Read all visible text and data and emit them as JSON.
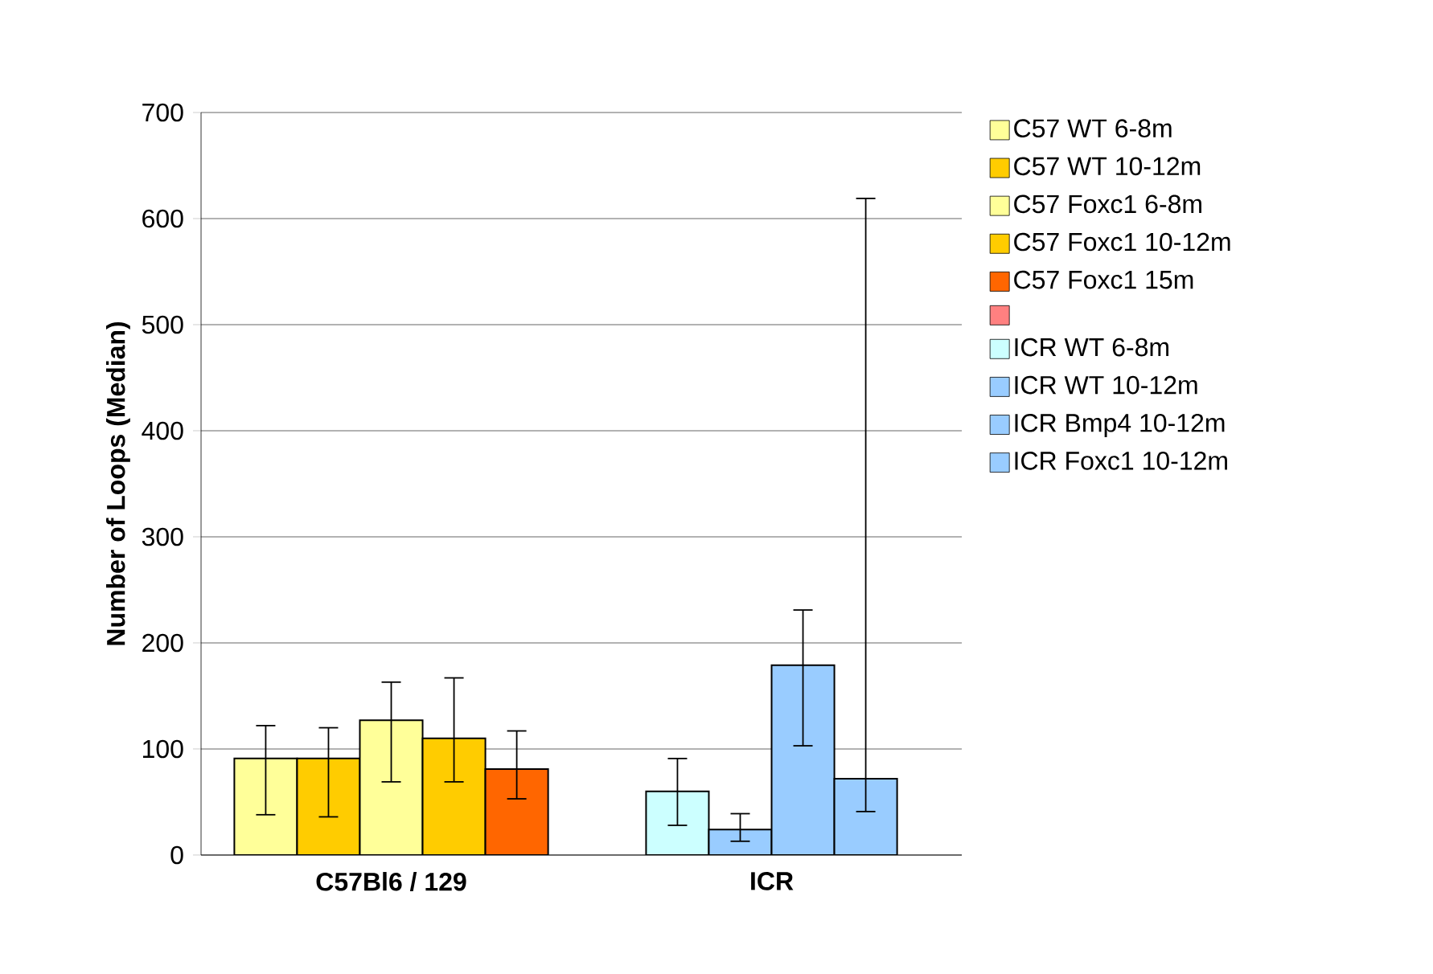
{
  "chart_data": {
    "type": "bar",
    "ylabel": "Number of Loops (Median)",
    "categories": [
      "C57Bl6 / 129",
      "ICR"
    ],
    "ylim": [
      0,
      700
    ],
    "yticks": [
      0,
      100,
      200,
      300,
      400,
      500,
      600,
      700
    ],
    "grid": "y",
    "legend": "right",
    "series": [
      {
        "name": "C57 WT 6-8m",
        "color": "#ffff99",
        "values": [
          91,
          null
        ],
        "errors": [
          [
            38,
            122
          ],
          null
        ]
      },
      {
        "name": "C57 WT 10-12m",
        "color": "#ffcc00",
        "values": [
          91,
          null
        ],
        "errors": [
          [
            36,
            120
          ],
          null
        ]
      },
      {
        "name": "C57 Foxc1 6-8m",
        "color": "#ffff99",
        "values": [
          127,
          null
        ],
        "errors": [
          [
            69,
            163
          ],
          null
        ]
      },
      {
        "name": "C57 Foxc1 10-12m",
        "color": "#ffcc00",
        "values": [
          110,
          null
        ],
        "errors": [
          [
            69,
            167
          ],
          null
        ]
      },
      {
        "name": "C57 Foxc1 15m",
        "color": "#ff6600",
        "values": [
          81,
          null
        ],
        "errors": [
          [
            53,
            117
          ],
          null
        ]
      },
      {
        "color": "#ff8080",
        "values": [
          null,
          null
        ]
      },
      {
        "name": "ICR WT 6-8m",
        "color": "#ccffff",
        "values": [
          null,
          60
        ],
        "errors": [
          null,
          [
            28,
            91
          ]
        ]
      },
      {
        "name": "ICR WT 10-12m",
        "color": "#99ccff",
        "values": [
          null,
          24
        ],
        "errors": [
          null,
          [
            13,
            39
          ]
        ]
      },
      {
        "name": "ICR Bmp4 10-12m",
        "color": "#99ccff",
        "values": [
          null,
          179
        ],
        "errors": [
          null,
          [
            103,
            231
          ]
        ]
      },
      {
        "name": "ICR Foxc1 10-12m",
        "color": "#99ccff",
        "values": [
          null,
          72
        ],
        "errors": [
          null,
          [
            41,
            619
          ]
        ]
      }
    ]
  }
}
